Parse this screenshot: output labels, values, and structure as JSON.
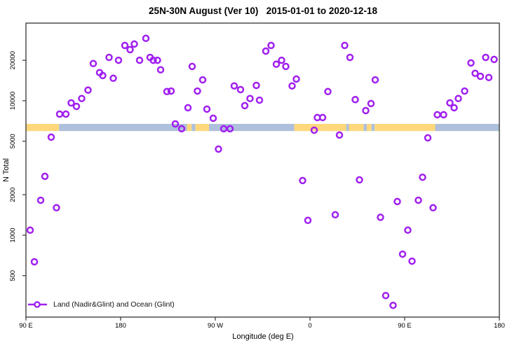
{
  "title": "25N-30N August (Ver 10)   2015-01-01 to 2020-12-18",
  "legend": {
    "label": "Land (Nadir&Glint) and Ocean (Glint)"
  },
  "colors": {
    "marker": "#A020F0",
    "land": "#FFD87D",
    "ocean": "#AEC0DB",
    "axis": "#333333",
    "text": "#000000"
  },
  "chart_data": {
    "type": "scatter",
    "title": "25N-30N August (Ver 10)   2015-01-01 to 2020-12-18",
    "xlabel": "Longitude (deg E)",
    "ylabel": "N Total",
    "grid": false,
    "legend_position": "bottom-left",
    "x_axis": {
      "range": [
        90,
        540
      ],
      "tick_values": [
        90,
        180,
        270,
        360,
        450,
        540
      ],
      "tick_labels": [
        "90 E",
        "180",
        "90 W",
        "0",
        "90 E",
        "180"
      ],
      "note": "longitude unwrapped eastward starting at 90E"
    },
    "y_axis": {
      "scale": "log",
      "range": [
        246,
        37800
      ],
      "tick_values": [
        500,
        1000,
        2000,
        5000,
        10000,
        20000
      ],
      "tick_labels": [
        "500",
        "1000",
        "2000",
        "5000",
        "10000",
        "20000"
      ]
    },
    "map_band": {
      "value_top": 6730,
      "value_bottom": 5950,
      "segments": [
        {
          "from": 90,
          "to": 121.5,
          "type": "land"
        },
        {
          "from": 121.5,
          "to": 243,
          "type": "ocean"
        },
        {
          "from": 243,
          "to": 247.5,
          "type": "land"
        },
        {
          "from": 247.5,
          "to": 251,
          "type": "ocean"
        },
        {
          "from": 251,
          "to": 264,
          "type": "land"
        },
        {
          "from": 264,
          "to": 345,
          "type": "ocean"
        },
        {
          "from": 345,
          "to": 394.5,
          "type": "land"
        },
        {
          "from": 394.5,
          "to": 397,
          "type": "ocean"
        },
        {
          "from": 397,
          "to": 411,
          "type": "land"
        },
        {
          "from": 411,
          "to": 414,
          "type": "ocean"
        },
        {
          "from": 414,
          "to": 418.5,
          "type": "land"
        },
        {
          "from": 418.5,
          "to": 421.5,
          "type": "ocean"
        },
        {
          "from": 421.5,
          "to": 479,
          "type": "land"
        },
        {
          "from": 479,
          "to": 540,
          "type": "ocean"
        }
      ]
    },
    "series": [
      {
        "name": "Land (Nadir&Glint) and Ocean (Glint)",
        "marker": "open-circle",
        "color": "#A020F0",
        "points": [
          [
            122,
            7960
          ],
          [
            128,
            7960
          ],
          [
            133,
            9640
          ],
          [
            138,
            9080
          ],
          [
            143,
            10400
          ],
          [
            149,
            12000
          ],
          [
            154,
            18900
          ],
          [
            160,
            16200
          ],
          [
            163,
            15400
          ],
          [
            169,
            21000
          ],
          [
            173,
            14700
          ],
          [
            178,
            20000
          ],
          [
            184,
            25800
          ],
          [
            189,
            24000
          ],
          [
            193,
            26400
          ],
          [
            198,
            20000
          ],
          [
            204,
            29100
          ],
          [
            208,
            21000
          ],
          [
            211,
            20000
          ],
          [
            215,
            20000
          ],
          [
            218,
            17000
          ],
          [
            224,
            11700
          ],
          [
            228,
            11800
          ],
          [
            232,
            6730
          ],
          [
            244,
            8870
          ],
          [
            248,
            18000
          ],
          [
            253,
            11800
          ],
          [
            258,
            14300
          ],
          [
            262,
            8660
          ],
          [
            268,
            7410
          ],
          [
            288,
            12900
          ],
          [
            294,
            12100
          ],
          [
            298,
            9200
          ],
          [
            303,
            10400
          ],
          [
            309,
            13000
          ],
          [
            312,
            10100
          ],
          [
            318,
            23400
          ],
          [
            323,
            25800
          ],
          [
            328,
            18700
          ],
          [
            333,
            20000
          ],
          [
            337,
            18000
          ],
          [
            343,
            12900
          ],
          [
            347,
            14500
          ],
          [
            367,
            7500
          ],
          [
            372,
            7500
          ],
          [
            377,
            11700
          ],
          [
            393,
            25800
          ],
          [
            398,
            21000
          ],
          [
            403,
            10200
          ],
          [
            413,
            8450
          ],
          [
            418,
            9530
          ],
          [
            422,
            14300
          ],
          [
            481,
            7870
          ],
          [
            487,
            7870
          ],
          [
            493,
            9640
          ],
          [
            497,
            8870
          ],
          [
            501,
            10400
          ],
          [
            507,
            11800
          ],
          [
            513,
            19100
          ],
          [
            517,
            16000
          ],
          [
            522,
            15200
          ],
          [
            527,
            21000
          ],
          [
            530,
            14900
          ],
          [
            535,
            20300
          ],
          [
            238,
            6190
          ],
          [
            278,
            6190
          ],
          [
            284,
            6190
          ],
          [
            364,
            6040
          ],
          [
            388,
            5560
          ],
          [
            472,
            5300
          ],
          [
            114,
            5360
          ],
          [
            108,
            2740
          ],
          [
            104,
            1820
          ],
          [
            119,
            1600
          ],
          [
            94,
            1090
          ],
          [
            98,
            634
          ],
          [
            273,
            4370
          ],
          [
            353,
            2550
          ],
          [
            358,
            1290
          ],
          [
            384,
            1420
          ],
          [
            407,
            2580
          ],
          [
            467,
            2700
          ],
          [
            443,
            1780
          ],
          [
            463,
            1820
          ],
          [
            477,
            1600
          ],
          [
            427,
            1360
          ],
          [
            453,
            1090
          ],
          [
            448,
            723
          ],
          [
            457,
            641
          ],
          [
            432,
            356
          ],
          [
            439,
            301
          ]
        ]
      }
    ]
  }
}
